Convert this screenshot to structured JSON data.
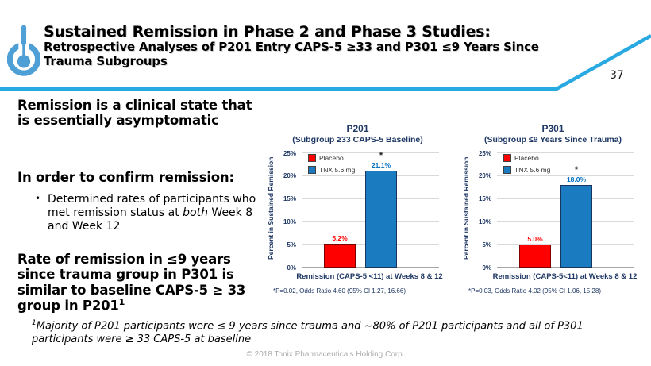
{
  "header": {
    "title": "Sustained Remission in Phase 2 and Phase 3 Studies:",
    "subtitle": "Retrospective Analyses of P201 Entry CAPS-5 ≥33 and P301 ≤9 Years Since Trauma Subgroups",
    "page_number": "37",
    "accent_color": "#29a9e1",
    "logo_color": "#4e9fd6",
    "logo_icon": "power-button-icon"
  },
  "left_panel": {
    "heading1": "Remission is a clinical state that is essentially asymptomatic",
    "heading2": "In order to confirm remission:",
    "bullet": {
      "marker": "•",
      "text_pre": "Determined rates of participants who met remission status at ",
      "text_italic": "both",
      "text_post": " Week 8 and Week 12"
    },
    "heading3": "Rate of remission in ≤9 years since trauma group in P301 is similar to baseline CAPS-5 ≥ 33 group in P201",
    "heading3_sup": "1"
  },
  "footnote": {
    "sup": "1",
    "text": "Majority of P201 participants were ≤ 9 years since trauma and ~80% of P201 participants and all of P301 participants were ≥ 33 CAPS-5 at baseline"
  },
  "copyright": "© 2018 Tonix Pharmaceuticals Holding Corp.",
  "chart_data": [
    {
      "type": "bar",
      "title": "P201",
      "subtitle": "(Subgroup ≥33 CAPS-5 Baseline)",
      "ylabel": "Percent in Sustained Remission",
      "xlabel": "Remission (CAPS-5 <11) at Weeks 8 & 12",
      "ylim": [
        0,
        25
      ],
      "yticks": [
        "0%",
        "5%",
        "10%",
        "15%",
        "20%",
        "25%"
      ],
      "grid": true,
      "legend_position": "top-left",
      "significance_marker": "*",
      "series": [
        {
          "name": "Placebo",
          "value": 5.2,
          "label": "5.2%",
          "color": "#ff0000",
          "border": "#7f0000",
          "label_color": "#ff0000",
          "significant": false
        },
        {
          "name": "TNX 5.6 mg",
          "value": 21.1,
          "label": "21.1%",
          "color": "#1b7bc0",
          "border": "#17365d",
          "label_color": "#0070c0",
          "significant": true
        }
      ],
      "footnote": "*P=0.02, Odds Ratio 4.60 (95% CI 1.27, 16.66)"
    },
    {
      "type": "bar",
      "title": "P301",
      "subtitle": "(Subgroup ≤9 Years Since Trauma)",
      "ylabel": "Percent in Sustained Remission",
      "xlabel": "Remission (CAPS-5<11) at Weeks 8 & 12",
      "ylim": [
        0,
        25
      ],
      "yticks": [
        "0%",
        "5%",
        "10%",
        "15%",
        "20%",
        "25%"
      ],
      "grid": true,
      "legend_position": "top-left",
      "significance_marker": "*",
      "series": [
        {
          "name": "Placebo",
          "value": 5.0,
          "label": "5.0%",
          "color": "#ff0000",
          "border": "#7f0000",
          "label_color": "#ff0000",
          "significant": false
        },
        {
          "name": "TNX 5.6 mg",
          "value": 18.0,
          "label": "18.0%",
          "color": "#1b7bc0",
          "border": "#17365d",
          "label_color": "#0070c0",
          "significant": true
        }
      ],
      "footnote": "*P=0.03, Odds Ratio 4.02 (95% CI 1.06, 15.28)"
    }
  ]
}
